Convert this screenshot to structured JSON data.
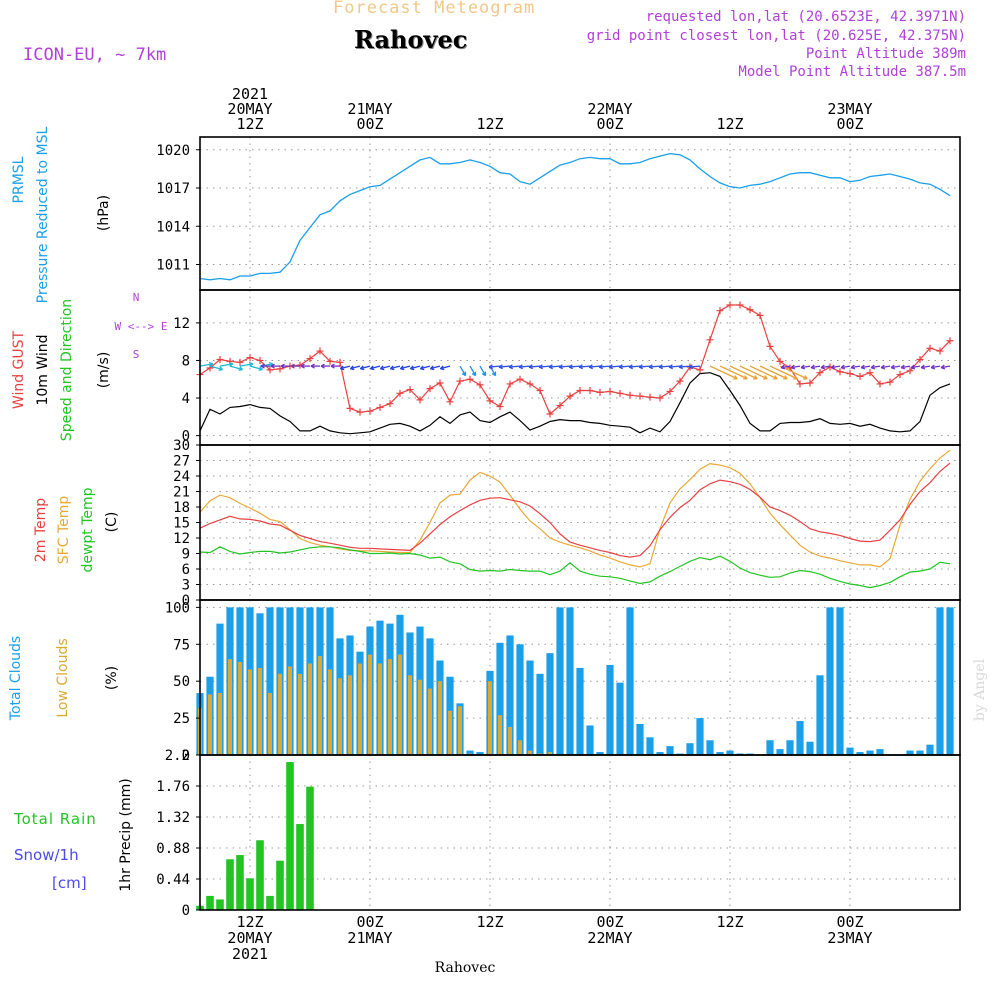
{
  "header": {
    "subtitle": "Forecast Meteogram",
    "location": "Rahovec",
    "model": "ICON-EU, ~ 7km",
    "requested": "requested lon,lat (20.6523E, 42.3971N)",
    "grid_point": "grid point closest lon,lat (20.625E, 42.375N)",
    "point_altitude": "Point Altitude 389m",
    "model_altitude": "Model Point Altitude 387.5m",
    "credit": "by Angel",
    "footer": "Rahovec"
  },
  "colors": {
    "pressure": "#1a9fe8",
    "gust": "#e84040",
    "wind": "#000000",
    "temp": "#e84040",
    "sfc": "#e8a838",
    "dewpt": "#22c422",
    "total_cloud": "#1a9fe8",
    "low_cloud": "#d8a838",
    "rain": "#22c422",
    "snow": "#4a4ae8",
    "meta": "#b040d8"
  },
  "time_axis": {
    "top": [
      {
        "h": 12,
        "lines": [
          "2021",
          "20MAY",
          "12Z"
        ]
      },
      {
        "h": 24,
        "lines": [
          "21MAY",
          "00Z"
        ]
      },
      {
        "h": 36,
        "lines": [
          "12Z"
        ]
      },
      {
        "h": 48,
        "lines": [
          "22MAY",
          "00Z"
        ]
      },
      {
        "h": 60,
        "lines": [
          "12Z"
        ]
      },
      {
        "h": 72,
        "lines": [
          "23MAY",
          "00Z"
        ]
      }
    ],
    "bottom": [
      {
        "h": 12,
        "lines": [
          "12Z",
          "20MAY",
          "2021"
        ]
      },
      {
        "h": 24,
        "lines": [
          "00Z",
          "21MAY"
        ]
      },
      {
        "h": 36,
        "lines": [
          "12Z"
        ]
      },
      {
        "h": 48,
        "lines": [
          "00Z",
          "22MAY"
        ]
      },
      {
        "h": 60,
        "lines": [
          "12Z"
        ]
      },
      {
        "h": 72,
        "lines": [
          "00Z",
          "23MAY"
        ]
      }
    ]
  },
  "chart_data": [
    {
      "type": "line",
      "panel": "pressure",
      "ylabel": [
        "PRMSL",
        "Pressure Reduced to MSL"
      ],
      "unit": "(hPa)",
      "ylim": [
        1009.0,
        1021.0
      ],
      "yticks": [
        1011,
        1014,
        1017,
        1020
      ],
      "xlim": [
        7,
        83
      ],
      "x": [
        7,
        8,
        9,
        10,
        11,
        12,
        13,
        14,
        15,
        16,
        17,
        18,
        19,
        20,
        21,
        22,
        23,
        24,
        25,
        26,
        27,
        28,
        29,
        30,
        31,
        32,
        33,
        34,
        35,
        36,
        37,
        38,
        39,
        40,
        41,
        42,
        43,
        44,
        45,
        46,
        47,
        48,
        49,
        50,
        51,
        52,
        53,
        54,
        55,
        56,
        57,
        58,
        59,
        60,
        61,
        62,
        63,
        64,
        65,
        66,
        67,
        68,
        69,
        70,
        71,
        72,
        73,
        74,
        75,
        76,
        77,
        78,
        79,
        80,
        81,
        82
      ],
      "series": [
        {
          "values": [
            1009.9,
            1009.8,
            1009.9,
            1009.8,
            1010.1,
            1010.1,
            1010.3,
            1010.3,
            1010.4,
            1011.2,
            1012.9,
            1013.9,
            1014.9,
            1015.2,
            1016.0,
            1016.5,
            1016.8,
            1017.1,
            1017.2,
            1017.7,
            1018.2,
            1018.7,
            1019.2,
            1019.4,
            1018.9,
            1018.9,
            1019.0,
            1019.2,
            1019.0,
            1018.7,
            1018.2,
            1018.1,
            1017.5,
            1017.3,
            1017.8,
            1018.3,
            1018.8,
            1019.0,
            1019.3,
            1019.4,
            1019.3,
            1019.3,
            1018.9,
            1018.9,
            1019.0,
            1019.3,
            1019.5,
            1019.7,
            1019.6,
            1019.2,
            1018.5,
            1017.9,
            1017.4,
            1017.1,
            1017.0,
            1017.2,
            1017.3,
            1017.5,
            1017.8,
            1018.1,
            1018.2,
            1018.2,
            1018.0,
            1017.8,
            1017.8,
            1017.5,
            1017.6,
            1017.9,
            1018.0,
            1018.1,
            1017.9,
            1017.7,
            1017.4,
            1017.3,
            1016.9,
            1016.4
          ],
          "line": true
        }
      ]
    },
    {
      "type": "line",
      "panel": "wind",
      "ylabel_series": [
        "Wind GUST",
        "10m Wind",
        "Speed and Direction"
      ],
      "unit": "(m/s)",
      "compass": [
        "N",
        "W <--> E",
        "S"
      ],
      "ylim": [
        -1.0,
        15.5
      ],
      "yticks": [
        0,
        4,
        8,
        12
      ],
      "xlim": [
        7,
        83
      ],
      "x": [
        7,
        8,
        9,
        10,
        11,
        12,
        13,
        14,
        15,
        16,
        17,
        18,
        19,
        20,
        21,
        22,
        23,
        24,
        25,
        26,
        27,
        28,
        29,
        30,
        31,
        32,
        33,
        34,
        35,
        36,
        37,
        38,
        39,
        40,
        41,
        42,
        43,
        44,
        45,
        46,
        47,
        48,
        49,
        50,
        51,
        52,
        53,
        54,
        55,
        56,
        57,
        58,
        59,
        60,
        61,
        62,
        63,
        64,
        65,
        66,
        67,
        68,
        69,
        70,
        71,
        72,
        73,
        74,
        75,
        76,
        77,
        78,
        79,
        80,
        81,
        82
      ],
      "series": [
        {
          "name": "Wind GUST",
          "values": [
            6.5,
            7.2,
            8.1,
            7.9,
            7.8,
            8.3,
            8.0,
            7.0,
            7.1,
            7.4,
            7.5,
            8.2,
            9.0,
            7.9,
            7.8,
            2.9,
            2.5,
            2.6,
            3.0,
            3.4,
            4.5,
            4.9,
            3.8,
            5.0,
            5.6,
            3.6,
            5.8,
            6.0,
            5.4,
            3.7,
            3.1,
            5.5,
            6.0,
            5.5,
            4.8,
            2.3,
            3.2,
            4.2,
            4.8,
            4.8,
            4.6,
            4.7,
            4.5,
            4.3,
            4.2,
            4.1,
            4.0,
            4.7,
            5.8,
            7.3,
            7.0,
            10.2,
            13.3,
            13.9,
            13.9,
            13.4,
            12.8,
            9.5,
            7.9,
            7.2,
            5.5,
            5.6,
            6.7,
            7.3,
            6.8,
            6.6,
            6.3,
            6.7,
            5.5,
            5.7,
            6.5,
            6.9,
            8.1,
            9.3,
            9.0,
            10.1
          ]
        },
        {
          "name": "10m Wind",
          "values": [
            0.5,
            2.8,
            2.3,
            3.0,
            3.1,
            3.3,
            3.0,
            2.9,
            2.1,
            1.5,
            0.5,
            0.5,
            1.0,
            0.5,
            0.3,
            0.2,
            0.3,
            0.4,
            0.8,
            1.2,
            1.3,
            1.0,
            0.5,
            1.1,
            2.0,
            1.3,
            2.2,
            2.5,
            1.6,
            1.4,
            2.0,
            2.5,
            1.6,
            0.6,
            1.0,
            1.5,
            1.7,
            1.6,
            1.6,
            1.4,
            1.3,
            1.1,
            1.0,
            0.9,
            0.3,
            0.8,
            0.4,
            1.5,
            3.5,
            5.6,
            6.6,
            6.7,
            6.3,
            4.8,
            3.2,
            1.3,
            0.5,
            0.5,
            1.3,
            1.4,
            1.4,
            1.5,
            1.8,
            1.3,
            1.2,
            1.3,
            1.0,
            1.2,
            0.8,
            0.5,
            0.4,
            0.5,
            1.5,
            4.3,
            5.1,
            5.5
          ]
        }
      ],
      "barbs_color_note": "direction arrows drawn at 8 m/s level"
    },
    {
      "type": "line",
      "panel": "temperature",
      "ylabel_series": [
        "2m Temp",
        "SFC Temp",
        "dewpt Temp"
      ],
      "unit": "(C)",
      "ylim": [
        0,
        30
      ],
      "yticks": [
        0,
        3,
        6,
        9,
        12,
        15,
        18,
        21,
        24,
        27,
        30
      ],
      "xlim": [
        7,
        83
      ],
      "x": [
        7,
        8,
        9,
        10,
        11,
        12,
        13,
        14,
        15,
        16,
        17,
        18,
        19,
        20,
        21,
        22,
        23,
        24,
        25,
        26,
        27,
        28,
        29,
        30,
        31,
        32,
        33,
        34,
        35,
        36,
        37,
        38,
        39,
        40,
        41,
        42,
        43,
        44,
        45,
        46,
        47,
        48,
        49,
        50,
        51,
        52,
        53,
        54,
        55,
        56,
        57,
        58,
        59,
        60,
        61,
        62,
        63,
        64,
        65,
        66,
        67,
        68,
        69,
        70,
        71,
        72,
        73,
        74,
        75,
        76,
        77,
        78,
        79,
        80,
        81,
        82
      ],
      "series": [
        {
          "name": "2m Temp",
          "values": [
            13.9,
            14.8,
            15.5,
            16.2,
            15.7,
            15.6,
            15.3,
            14.7,
            14.5,
            13.5,
            12.5,
            11.9,
            11.3,
            11.0,
            10.6,
            10.2,
            10.0,
            10.0,
            9.9,
            9.8,
            9.7,
            9.6,
            11.0,
            12.8,
            14.6,
            16.1,
            17.3,
            18.4,
            19.3,
            19.7,
            19.8,
            19.4,
            19.0,
            18.2,
            16.7,
            15.0,
            12.8,
            11.2,
            10.6,
            10.1,
            9.6,
            9.2,
            8.6,
            8.3,
            8.6,
            10.5,
            13.6,
            16.0,
            17.9,
            19.3,
            21.3,
            22.5,
            23.2,
            22.9,
            22.4,
            21.4,
            19.9,
            18.0,
            17.3,
            16.4,
            15.2,
            13.8,
            13.2,
            12.9,
            12.5,
            11.9,
            11.4,
            11.3,
            11.6,
            13.5,
            15.5,
            18.5,
            21.0,
            22.7,
            24.9,
            26.5
          ]
        },
        {
          "name": "SFC Temp",
          "values": [
            17.0,
            19.2,
            20.3,
            19.8,
            18.7,
            17.8,
            16.8,
            15.6,
            15.2,
            13.6,
            11.9,
            11.1,
            10.6,
            10.3,
            9.9,
            9.6,
            9.5,
            9.5,
            9.4,
            9.3,
            9.2,
            9.2,
            11.6,
            15.0,
            18.8,
            20.3,
            20.5,
            23.2,
            24.7,
            24.0,
            22.8,
            20.3,
            17.6,
            15.3,
            13.8,
            12.0,
            11.2,
            10.6,
            10.1,
            9.5,
            8.7,
            8.1,
            7.4,
            6.8,
            6.4,
            7.0,
            13.8,
            18.8,
            21.5,
            23.3,
            25.3,
            26.4,
            26.1,
            25.6,
            24.5,
            22.5,
            19.8,
            16.8,
            14.6,
            12.6,
            10.6,
            9.3,
            8.5,
            8.1,
            7.6,
            7.2,
            6.8,
            6.8,
            6.4,
            8.0,
            14.5,
            19.5,
            23.0,
            25.4,
            27.5,
            29.0
          ]
        },
        {
          "name": "dewpt Temp",
          "values": [
            9.3,
            9.2,
            10.3,
            9.4,
            8.9,
            9.2,
            9.4,
            9.4,
            9.1,
            9.3,
            9.7,
            10.1,
            10.3,
            10.3,
            10.1,
            9.7,
            9.4,
            9.0,
            9.0,
            9.1,
            8.9,
            9.0,
            8.7,
            8.1,
            8.3,
            7.4,
            7.0,
            5.9,
            5.6,
            5.7,
            5.6,
            5.9,
            5.7,
            5.6,
            5.6,
            4.9,
            5.6,
            7.2,
            5.6,
            5.0,
            4.6,
            4.5,
            4.2,
            3.7,
            3.2,
            3.5,
            4.6,
            5.5,
            6.5,
            7.5,
            8.2,
            7.8,
            8.5,
            7.5,
            6.2,
            5.3,
            4.8,
            4.4,
            4.5,
            5.2,
            5.7,
            5.5,
            5.0,
            4.2,
            3.6,
            3.1,
            2.8,
            2.4,
            2.8,
            3.4,
            4.5,
            5.4,
            5.6,
            6.0,
            7.3,
            7.0
          ]
        }
      ]
    },
    {
      "type": "bar",
      "panel": "clouds",
      "ylabel_series": [
        "Total Clouds",
        "Low Clouds"
      ],
      "unit": "(%)",
      "ylim": [
        0,
        105
      ],
      "yticks": [
        0,
        25,
        50,
        75,
        100
      ],
      "xlim": [
        7,
        83
      ],
      "x": [
        7,
        8,
        9,
        10,
        11,
        12,
        13,
        14,
        15,
        16,
        17,
        18,
        19,
        20,
        21,
        22,
        23,
        24,
        25,
        26,
        27,
        28,
        29,
        30,
        31,
        32,
        33,
        34,
        35,
        36,
        37,
        38,
        39,
        40,
        41,
        42,
        43,
        44,
        45,
        46,
        47,
        48,
        49,
        50,
        51,
        52,
        53,
        54,
        55,
        56,
        57,
        58,
        59,
        60,
        61,
        62,
        63,
        64,
        65,
        66,
        67,
        68,
        69,
        70,
        71,
        72,
        73,
        74,
        75,
        76,
        77,
        78,
        79,
        80,
        81,
        82
      ],
      "series": [
        {
          "name": "Total Clouds",
          "values": [
            42,
            53,
            89,
            100,
            100,
            100,
            96,
            100,
            100,
            100,
            100,
            100,
            100,
            100,
            79,
            81,
            70,
            87,
            91,
            89,
            95,
            83,
            87,
            79,
            64,
            53,
            35,
            3,
            2,
            57,
            76,
            81,
            75,
            64,
            55,
            69,
            100,
            100,
            59,
            20,
            2,
            61,
            49,
            100,
            21,
            12,
            2,
            6,
            1,
            8,
            25,
            10,
            2,
            3,
            1,
            1,
            0,
            10,
            4,
            10,
            23,
            9,
            54,
            100,
            100,
            5,
            2,
            3,
            4,
            0,
            0,
            3,
            3,
            7,
            100,
            100
          ]
        },
        {
          "name": "Low Clouds",
          "values": [
            32,
            41,
            42,
            65,
            63,
            58,
            59,
            42,
            55,
            60,
            55,
            62,
            67,
            58,
            52,
            54,
            62,
            68,
            62,
            65,
            68,
            54,
            51,
            45,
            50,
            30,
            33,
            1,
            0,
            50,
            27,
            19,
            10,
            3,
            1,
            2,
            0,
            0,
            0,
            0,
            0,
            0,
            0,
            0,
            0,
            0,
            0,
            0,
            0,
            0,
            0,
            0,
            0,
            0,
            0,
            0,
            0,
            0,
            0,
            0,
            0,
            0,
            0,
            0,
            0,
            0,
            0,
            0,
            0,
            0,
            0,
            0,
            0,
            0,
            0,
            0
          ]
        }
      ]
    },
    {
      "type": "bar",
      "panel": "precip",
      "ylabel_series": [
        "Total Rain",
        "Snow/1h",
        "[cm]"
      ],
      "unit": "1hr Precip (mm)",
      "ylim": [
        0,
        2.2
      ],
      "yticks": [
        0,
        0.44,
        0.88,
        1.32,
        1.76,
        2.2
      ],
      "ytick_labels": [
        "0",
        "0.44",
        "0.88",
        "1.32",
        "1.76",
        "2.2"
      ],
      "xlim": [
        7,
        83
      ],
      "x": [
        7,
        8,
        9,
        10,
        11,
        12,
        13,
        14,
        15,
        16,
        17,
        18,
        19,
        20
      ],
      "series": [
        {
          "name": "Total Rain",
          "values": [
            0.06,
            0.2,
            0.15,
            0.72,
            0.78,
            0.45,
            0.99,
            0.2,
            0.7,
            2.1,
            1.22,
            1.75,
            0,
            0
          ]
        }
      ]
    }
  ]
}
